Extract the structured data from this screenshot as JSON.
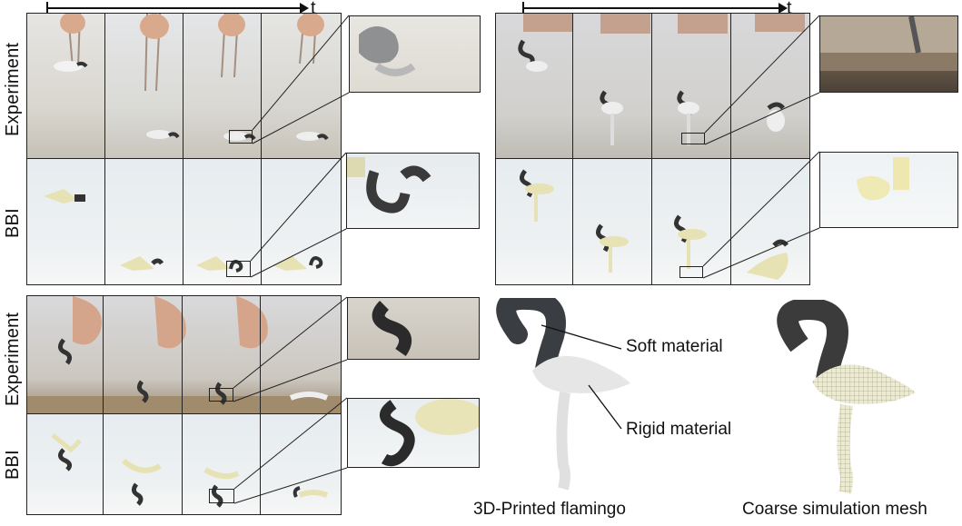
{
  "time_axis_label": "t",
  "row_labels": {
    "experiment": "Experiment",
    "bbi": "BBI"
  },
  "callouts": {
    "soft": "Soft material",
    "rigid": "Rigid material"
  },
  "captions": {
    "printed": "3D-Printed flamingo",
    "mesh": "Coarse simulation mesh"
  },
  "colors": {
    "soft_material": "#3b3b3b",
    "rigid_material": "#e6e2b4",
    "photo_bg": "#cfcac2",
    "sim_bg": "#e9eef0"
  }
}
